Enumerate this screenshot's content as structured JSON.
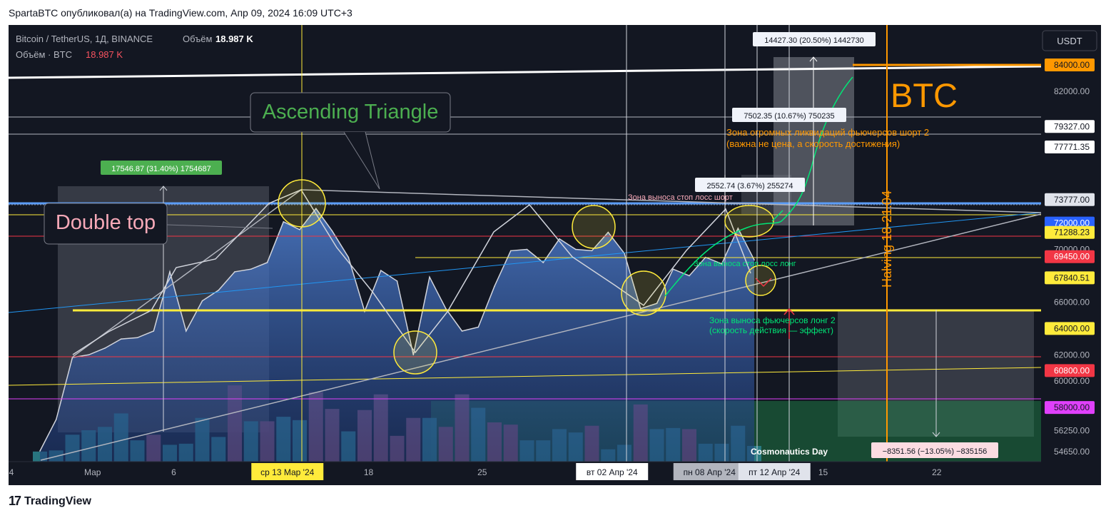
{
  "header": {
    "text": "SpartaBTC опубликовал(а) на TradingView.com, Апр 09, 2024 16:09 UTC+3"
  },
  "symbol_line": {
    "name": "Bitcoin / TetherUS, 1Д, BINANCE",
    "vol_label": "Объём",
    "vol_value": "18.987 K"
  },
  "volume_line": {
    "label": "Объём · BTC",
    "value": "18.987 K"
  },
  "currency_button": "USDT",
  "footer": {
    "logo_text": "TradingView"
  },
  "chart_data": {
    "type": "area",
    "title": "Bitcoin / TetherUS, 1Д, BINANCE",
    "ylim": [
      54000,
      86000
    ],
    "price_scale": [
      {
        "value": 84000,
        "label": "84000.00",
        "bg": "#ff9800",
        "fg": "#131722"
      },
      {
        "value": 82000,
        "label": "82000.00"
      },
      {
        "value": 79327,
        "label": "79327.00",
        "bg": "#ffffff",
        "fg": "#131722"
      },
      {
        "value": 77771.35,
        "label": "77771.35",
        "bg": "#ffffff",
        "fg": "#131722"
      },
      {
        "value": 73777,
        "label": "73777.00",
        "bg": "#e0e3eb",
        "fg": "#131722"
      },
      {
        "value": 72000,
        "label": "72000.00",
        "bg": "#2962ff",
        "fg": "#ffffff"
      },
      {
        "value": 71288.23,
        "label": "71288.23",
        "bg": "#ffeb3b",
        "fg": "#131722"
      },
      {
        "value": 70000,
        "label": "70000.00"
      },
      {
        "value": 69450,
        "label": "69450.00",
        "bg": "#f23645",
        "fg": "#ffffff"
      },
      {
        "value": 67840.51,
        "label": "67840.51",
        "bg": "#ffeb3b",
        "fg": "#131722"
      },
      {
        "value": 66000,
        "label": "66000.00"
      },
      {
        "value": 64000,
        "label": "64000.00",
        "bg": "#ffeb3b",
        "fg": "#131722"
      },
      {
        "value": 62000,
        "label": "62000.00"
      },
      {
        "value": 60800,
        "label": "60800.00",
        "bg": "#f23645",
        "fg": "#ffffff"
      },
      {
        "value": 60000,
        "label": "60000.00"
      },
      {
        "value": 58000,
        "label": "58000.00",
        "bg": "#e040fb",
        "fg": "#131722"
      },
      {
        "value": 56250,
        "label": "56250.00"
      },
      {
        "value": 54650,
        "label": "54650.00"
      }
    ],
    "time_axis": [
      {
        "label": "4",
        "day": 0
      },
      {
        "label": "Мар",
        "day": 5
      },
      {
        "label": "6",
        "day": 10
      },
      {
        "label": "ср 13 Мар '24",
        "day": 17,
        "highlight": "#ffeb3b"
      },
      {
        "label": "18",
        "day": 22
      },
      {
        "label": "25",
        "day": 29
      },
      {
        "label": "вт 02 Апр '24",
        "day": 37,
        "highlight": "#ffffff"
      },
      {
        "label": "пн 08 Апр '24",
        "day": 43,
        "highlight": "#b2b5be"
      },
      {
        "label": "пт 12 Апр '24",
        "day": 47,
        "highlight": "#e0e3eb"
      },
      {
        "label": "15",
        "day": 50
      },
      {
        "label": "22",
        "day": 57
      }
    ],
    "price_closes": [
      {
        "day": 0,
        "close": 54700
      },
      {
        "day": 1,
        "close": 57100
      },
      {
        "day": 2,
        "close": 61800
      },
      {
        "day": 3,
        "close": 62000
      },
      {
        "day": 4,
        "close": 62500
      },
      {
        "day": 5,
        "close": 63200
      },
      {
        "day": 6,
        "close": 63300
      },
      {
        "day": 7,
        "close": 63800
      },
      {
        "day": 8,
        "close": 68300
      },
      {
        "day": 9,
        "close": 63800
      },
      {
        "day": 10,
        "close": 66100
      },
      {
        "day": 11,
        "close": 66900
      },
      {
        "day": 12,
        "close": 68300
      },
      {
        "day": 13,
        "close": 68500
      },
      {
        "day": 14,
        "close": 69000
      },
      {
        "day": 15,
        "close": 72100
      },
      {
        "day": 16,
        "close": 71500
      },
      {
        "day": 17,
        "close": 73100
      },
      {
        "day": 18,
        "close": 71400
      },
      {
        "day": 19,
        "close": 69400
      },
      {
        "day": 20,
        "close": 65300
      },
      {
        "day": 21,
        "close": 68400
      },
      {
        "day": 22,
        "close": 67600
      },
      {
        "day": 23,
        "close": 62000
      },
      {
        "day": 24,
        "close": 67900
      },
      {
        "day": 25,
        "close": 65500
      },
      {
        "day": 26,
        "close": 63800
      },
      {
        "day": 27,
        "close": 64100
      },
      {
        "day": 28,
        "close": 67200
      },
      {
        "day": 29,
        "close": 69900
      },
      {
        "day": 30,
        "close": 70000
      },
      {
        "day": 31,
        "close": 69000
      },
      {
        "day": 32,
        "close": 70800
      },
      {
        "day": 33,
        "close": 70000
      },
      {
        "day": 34,
        "close": 69900
      },
      {
        "day": 35,
        "close": 71300
      },
      {
        "day": 36,
        "close": 69700
      },
      {
        "day": 37,
        "close": 65500
      },
      {
        "day": 38,
        "close": 65900
      },
      {
        "day": 39,
        "close": 68500
      },
      {
        "day": 40,
        "close": 68000
      },
      {
        "day": 41,
        "close": 69400
      },
      {
        "day": 42,
        "close": 68900
      },
      {
        "day": 43,
        "close": 71600
      },
      {
        "day": 44,
        "close": 69200
      }
    ],
    "volumes": [
      {
        "day": 0,
        "v": 0.9,
        "c": "#2b7f8a"
      },
      {
        "day": 1,
        "v": 1.0,
        "c": "#2b7f8a"
      },
      {
        "day": 2,
        "v": 2.4,
        "c": "#2b7f8a"
      },
      {
        "day": 3,
        "v": 2.8,
        "c": "#2b7f8a"
      },
      {
        "day": 4,
        "v": 3.1,
        "c": "#2b7f8a"
      },
      {
        "day": 5,
        "v": 4.3,
        "c": "#2b7f8a"
      },
      {
        "day": 6,
        "v": 1.9,
        "c": "#2b7f8a"
      },
      {
        "day": 7,
        "v": 2.4,
        "c": "#8b4a6b"
      },
      {
        "day": 8,
        "v": 1.5,
        "c": "#2b7f8a"
      },
      {
        "day": 9,
        "v": 1.6,
        "c": "#2b7f8a"
      },
      {
        "day": 10,
        "v": 3.9,
        "c": "#2b7f8a"
      },
      {
        "day": 11,
        "v": 2.2,
        "c": "#2b7f8a"
      },
      {
        "day": 12,
        "v": 6.8,
        "c": "#8b4a6b"
      },
      {
        "day": 13,
        "v": 3.6,
        "c": "#2b7f8a"
      },
      {
        "day": 14,
        "v": 3.6,
        "c": "#8b4a6b"
      },
      {
        "day": 15,
        "v": 4.0,
        "c": "#2b7f8a"
      },
      {
        "day": 16,
        "v": 3.7,
        "c": "#2b7f8a"
      },
      {
        "day": 17,
        "v": 6.2,
        "c": "#8b4a6b"
      },
      {
        "day": 18,
        "v": 4.7,
        "c": "#8b4a6b"
      },
      {
        "day": 19,
        "v": 2.7,
        "c": "#2b7f8a"
      },
      {
        "day": 20,
        "v": 4.6,
        "c": "#8b4a6b"
      },
      {
        "day": 21,
        "v": 6.0,
        "c": "#8b4a6b"
      },
      {
        "day": 22,
        "v": 2.3,
        "c": "#8b4a6b"
      },
      {
        "day": 23,
        "v": 3.9,
        "c": "#8b4a6b"
      },
      {
        "day": 24,
        "v": 3.9,
        "c": "#2b7f8a"
      },
      {
        "day": 25,
        "v": 3.1,
        "c": "#8b4a6b"
      },
      {
        "day": 26,
        "v": 6.0,
        "c": "#8b4a6b"
      },
      {
        "day": 27,
        "v": 4.8,
        "c": "#2b7f8a"
      },
      {
        "day": 28,
        "v": 3.5,
        "c": "#8b4a6b"
      },
      {
        "day": 29,
        "v": 3.3,
        "c": "#8b4a6b"
      },
      {
        "day": 30,
        "v": 1.9,
        "c": "#2b7f8a"
      },
      {
        "day": 31,
        "v": 1.9,
        "c": "#2b7f8a"
      },
      {
        "day": 32,
        "v": 2.9,
        "c": "#2b7f8a"
      },
      {
        "day": 33,
        "v": 2.6,
        "c": "#2b7f8a"
      },
      {
        "day": 34,
        "v": 3.2,
        "c": "#8b4a6b"
      },
      {
        "day": 35,
        "v": 1.1,
        "c": "#2b7f8a"
      },
      {
        "day": 36,
        "v": 1.5,
        "c": "#2b7f8a"
      },
      {
        "day": 37,
        "v": 5.1,
        "c": "#8b4a6b"
      },
      {
        "day": 38,
        "v": 2.9,
        "c": "#2b7f8a"
      },
      {
        "day": 39,
        "v": 3.0,
        "c": "#2b7f8a"
      },
      {
        "day": 40,
        "v": 2.9,
        "c": "#8b4a6b"
      },
      {
        "day": 41,
        "v": 1.6,
        "c": "#2b7f8a"
      },
      {
        "day": 42,
        "v": 1.6,
        "c": "#2b7f8a"
      },
      {
        "day": 43,
        "v": 3.2,
        "c": "#2b7f8a"
      },
      {
        "day": 44,
        "v": 1.4,
        "c": "#2b7f8a"
      }
    ],
    "annotations": {
      "ascending_triangle": "Ascending Triangle",
      "double_top": "Double top",
      "btc": "BTC",
      "halving": "Halving  18-21.04",
      "measure_1": "17546.87 (31.40%) 1754687",
      "measure_2": "14427.30 (20.50%) 1442730",
      "measure_3": "7502.35 (10.67%) 750235",
      "measure_4": "2552.74 (3.67%) 255274",
      "measure_5": "−8351.56 (−13.05%) −835156",
      "zone_short_liq_1": "Зона огромных ликвидаций фьючерсов шорт 2",
      "zone_short_liq_2": "(важна не цена, а скорость достижения)",
      "zone_stop_short": "Зона выноса стоп лосс шорт",
      "zone_stop_long": "Зона выноса стоп лосс лонг",
      "zone_long_1": "Зона выноса фьючерсов лонг 2",
      "zone_long_2": "(скорость действия — эффект)",
      "cosmonautics": "Cosmonautics Day"
    }
  }
}
